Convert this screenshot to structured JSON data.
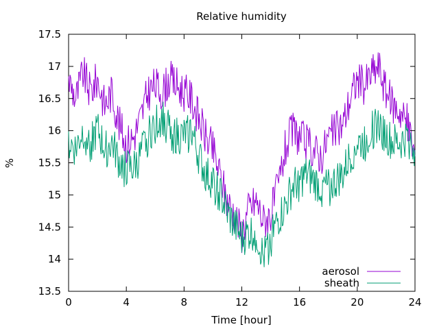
{
  "chart_data": {
    "type": "line",
    "title": "Relative humidity",
    "xlabel": "Time [hour]",
    "ylabel": "%",
    "xlim": [
      0,
      24
    ],
    "ylim": [
      13.5,
      17.5
    ],
    "xticks": [
      "0",
      "4",
      "8",
      "12",
      "16",
      "20",
      "24"
    ],
    "yticks": [
      "13.5",
      "14",
      "14.5",
      "15",
      "15.5",
      "16",
      "16.5",
      "17",
      "17.5"
    ],
    "grid": false,
    "legend_position": "bottom-right",
    "series": [
      {
        "name": "aerosol",
        "color": "#9400d3",
        "x": [
          0,
          0.5,
          1,
          1.5,
          2,
          2.5,
          3,
          3.5,
          4,
          4.5,
          5,
          5.5,
          6,
          6.5,
          7,
          7.5,
          8,
          8.5,
          9,
          9.5,
          10,
          10.5,
          11,
          11.5,
          12,
          12.5,
          13,
          13.5,
          14,
          14.5,
          15,
          15.5,
          16,
          16.5,
          17,
          17.5,
          18,
          18.5,
          19,
          19.5,
          20,
          20.5,
          21,
          21.5,
          22,
          22.5,
          23,
          23.5,
          24
        ],
        "values": [
          16.8,
          16.5,
          16.9,
          16.6,
          16.8,
          16.4,
          16.6,
          16.1,
          15.8,
          15.9,
          16.2,
          16.6,
          16.7,
          16.6,
          16.8,
          16.7,
          16.6,
          16.5,
          16.2,
          15.9,
          15.7,
          15.3,
          14.9,
          14.7,
          14.4,
          14.8,
          14.9,
          14.6,
          14.7,
          15.1,
          15.7,
          16.0,
          15.9,
          15.8,
          15.7,
          15.6,
          15.9,
          16.0,
          16.1,
          16.5,
          16.8,
          16.7,
          16.9,
          17.0,
          16.6,
          16.4,
          16.3,
          16.1,
          15.6
        ]
      },
      {
        "name": "sheath",
        "color": "#009e73",
        "x": [
          0,
          0.5,
          1,
          1.5,
          2,
          2.5,
          3,
          3.5,
          4,
          4.5,
          5,
          5.5,
          6,
          6.5,
          7,
          7.5,
          8,
          8.5,
          9,
          9.5,
          10,
          10.5,
          11,
          11.5,
          12,
          12.5,
          13,
          13.5,
          14,
          14.5,
          15,
          15.5,
          16,
          16.5,
          17,
          17.5,
          18,
          18.5,
          19,
          19.5,
          20,
          20.5,
          21,
          21.5,
          22,
          22.5,
          23,
          23.5,
          24
        ],
        "values": [
          15.8,
          15.7,
          16.0,
          15.8,
          16.0,
          15.7,
          15.8,
          15.5,
          15.4,
          15.4,
          15.6,
          15.9,
          16.1,
          16.2,
          16.0,
          15.9,
          15.9,
          16.0,
          15.6,
          15.3,
          15.2,
          15.0,
          14.7,
          14.5,
          14.3,
          14.4,
          14.4,
          14.0,
          14.3,
          14.6,
          14.8,
          15.1,
          15.2,
          15.3,
          15.2,
          15.1,
          15.1,
          15.2,
          15.3,
          15.6,
          15.8,
          15.8,
          16.0,
          16.1,
          15.9,
          15.8,
          15.8,
          15.9,
          15.7
        ]
      }
    ]
  }
}
